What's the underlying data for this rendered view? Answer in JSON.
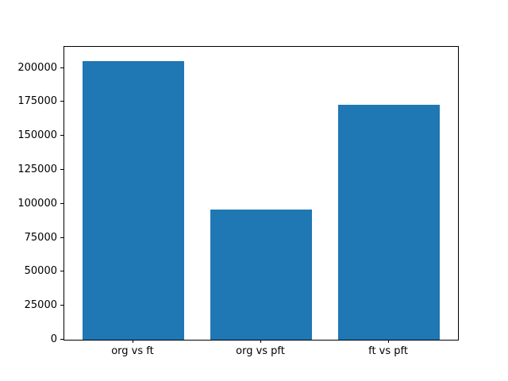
{
  "chart_data": {
    "type": "bar",
    "categories": [
      "org vs ft",
      "org vs pft",
      "ft vs pft"
    ],
    "values": [
      204800,
      95600,
      172900
    ],
    "yticks": [
      0,
      25000,
      50000,
      75000,
      100000,
      125000,
      150000,
      175000,
      200000
    ],
    "ytick_labels": [
      "0",
      "25000",
      "50000",
      "75000",
      "100000",
      "125000",
      "150000",
      "175000",
      "200000"
    ],
    "ylim": [
      0,
      215500
    ],
    "xlim": [
      -0.54,
      2.54
    ],
    "bar_width_units": 0.8,
    "bar_color": "#1f77b4",
    "axes_color": "#000000",
    "text_color": "#000000",
    "background_color": "#ffffff",
    "grid": "off",
    "legend": "none",
    "title": "",
    "xlabel": "",
    "ylabel": ""
  }
}
